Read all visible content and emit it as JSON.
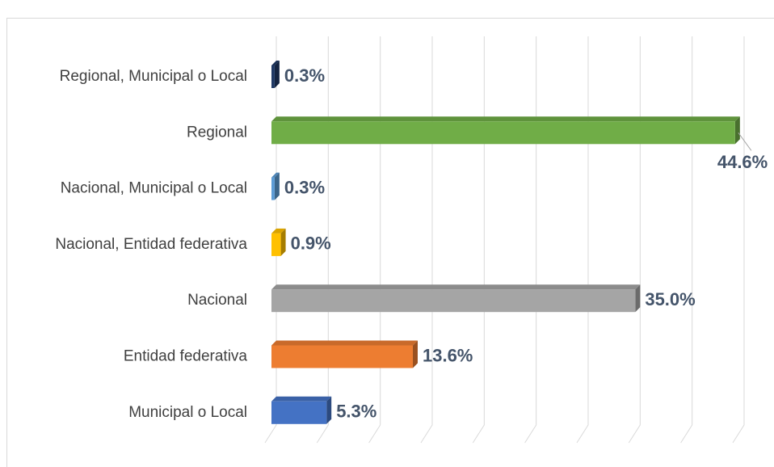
{
  "chart_data": {
    "type": "hbar",
    "categories": [
      "Regional, Municipal o Local",
      "Regional",
      "Nacional, Municipal o Local",
      "Nacional, Entidad federativa",
      "Nacional",
      "Entidad federativa",
      "Municipal o Local"
    ],
    "values": [
      0.3,
      44.6,
      0.3,
      0.9,
      35.0,
      13.6,
      5.3
    ],
    "value_labels": [
      "0.3%",
      "44.6%",
      "0.3%",
      "0.9%",
      "35.0%",
      "13.6%",
      "5.3%"
    ],
    "colors": [
      "#1f3864",
      "#70ad47",
      "#5b9bd5",
      "#ffc000",
      "#a5a5a5",
      "#ed7d31",
      "#4472c4"
    ],
    "xlim": [
      0,
      45
    ],
    "xticks": [
      0,
      5,
      10,
      15,
      20,
      25,
      30,
      35,
      40,
      45
    ],
    "grid": true
  }
}
